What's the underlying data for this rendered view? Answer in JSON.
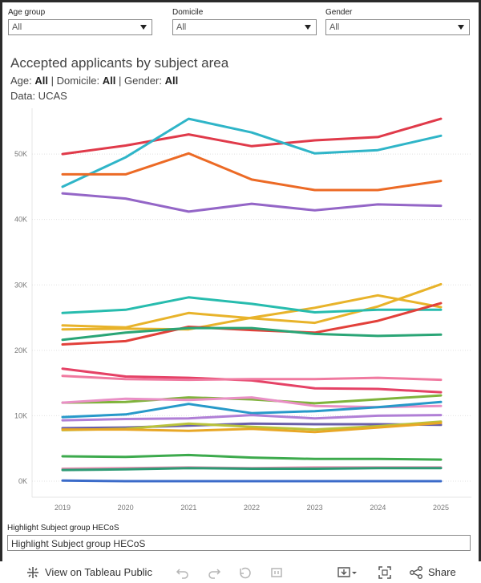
{
  "filters": [
    {
      "label": "Age group",
      "value": "All"
    },
    {
      "label": "Domicile",
      "value": "All"
    },
    {
      "label": "Gender",
      "value": "All"
    }
  ],
  "header": {
    "title": "Accepted applicants by subject area",
    "sub_age_label": "Age:",
    "sub_age_value": "All",
    "sub_dom_label": "Domicile:",
    "sub_dom_value": "All",
    "sub_gen_label": "Gender:",
    "sub_gen_value": "All",
    "source": "Data: UCAS"
  },
  "highlight": {
    "label": "Highlight Subject group HECoS",
    "placeholder": "Highlight Subject group HECoS"
  },
  "toolbar": {
    "view_label": "View on Tableau Public",
    "share_label": "Share",
    "icons": [
      "tableau-logo-icon",
      "undo-icon",
      "redo-icon",
      "revert-icon",
      "pause-icon",
      "download-icon",
      "fullscreen-icon",
      "share-icon"
    ]
  },
  "chart_data": {
    "type": "line",
    "x": [
      "2019",
      "2020",
      "2021",
      "2022",
      "2023",
      "2024",
      "2025"
    ],
    "ylim": [
      0,
      57000
    ],
    "yticks": [
      0,
      10000,
      20000,
      30000,
      40000,
      50000
    ],
    "ytick_labels": [
      "0K",
      "10K",
      "20K",
      "30K",
      "40K",
      "50K"
    ],
    "xlabel": "",
    "ylabel": "",
    "grid": true,
    "series": [
      {
        "color": "#e03a4a",
        "values": [
          50000,
          51300,
          53000,
          51200,
          52100,
          52600,
          55400
        ]
      },
      {
        "color": "#2fb5c8",
        "values": [
          45000,
          49500,
          55400,
          53300,
          50100,
          50600,
          52800
        ]
      },
      {
        "color": "#ec6a25",
        "values": [
          46900,
          46900,
          50100,
          46100,
          44500,
          44500,
          45900
        ]
      },
      {
        "color": "#9466c7",
        "values": [
          44000,
          43200,
          41200,
          42400,
          41400,
          42300,
          42100
        ]
      },
      {
        "color": "#e8b32a",
        "values": [
          23200,
          23300,
          23200,
          25000,
          26500,
          28400,
          26600
        ]
      },
      {
        "color": "#e8b32a",
        "values": [
          23800,
          23500,
          25700,
          24900,
          24200,
          26700,
          30100
        ]
      },
      {
        "color": "#27bcae",
        "values": [
          25700,
          26200,
          28100,
          27100,
          25800,
          26200,
          26200
        ]
      },
      {
        "color": "#e2403a",
        "values": [
          20900,
          21400,
          23600,
          23100,
          22700,
          24500,
          27200
        ]
      },
      {
        "color": "#2aa576",
        "values": [
          21600,
          22700,
          23400,
          23400,
          22500,
          22200,
          22400
        ]
      },
      {
        "color": "#e54266",
        "values": [
          17200,
          16000,
          15800,
          15400,
          14200,
          14100,
          13600
        ]
      },
      {
        "color": "#f07aa0",
        "values": [
          16100,
          15600,
          15500,
          15600,
          15600,
          15800,
          15500
        ]
      },
      {
        "color": "#7fb33b",
        "values": [
          12000,
          12100,
          12800,
          12500,
          11900,
          12500,
          13100
        ]
      },
      {
        "color": "#e98fc5",
        "values": [
          12000,
          12600,
          12400,
          12800,
          11500,
          11300,
          11500
        ]
      },
      {
        "color": "#2799c9",
        "values": [
          9800,
          10200,
          11800,
          10400,
          10700,
          11300,
          12100
        ]
      },
      {
        "color": "#b07fd6",
        "values": [
          9300,
          9500,
          9600,
          10100,
          9600,
          10000,
          10100
        ]
      },
      {
        "color": "#6a5fa8",
        "values": [
          8100,
          8200,
          8500,
          8800,
          8700,
          8700,
          8600
        ]
      },
      {
        "color": "#b9c23b",
        "values": [
          7800,
          8000,
          8800,
          8300,
          7900,
          8400,
          9100
        ]
      },
      {
        "color": "#e8a726",
        "values": [
          7900,
          7900,
          7700,
          8000,
          7500,
          8200,
          8900
        ]
      },
      {
        "color": "#3daa4d",
        "values": [
          3800,
          3700,
          4000,
          3600,
          3400,
          3400,
          3300
        ]
      },
      {
        "color": "#e38eb0",
        "values": [
          1900,
          2000,
          2100,
          2000,
          2100,
          2100,
          2100
        ]
      },
      {
        "color": "#2d9a74",
        "values": [
          1700,
          1800,
          2000,
          1900,
          1900,
          2000,
          2000
        ]
      },
      {
        "color": "#3b6bc9",
        "values": [
          100,
          0,
          0,
          0,
          0,
          0,
          0
        ]
      }
    ]
  }
}
